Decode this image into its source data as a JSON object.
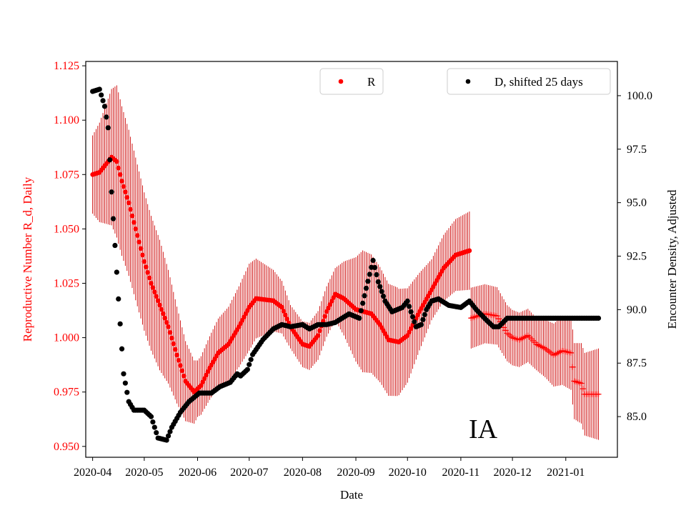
{
  "chart_data": {
    "type": "scatter",
    "xlabel": "Date",
    "ylabel_left": "Reproductive Number R_d, Daily",
    "ylabel_right": "Encounter Density, Adjusted",
    "annotation": "IA",
    "x_range": [
      "2020-03-28",
      "2021-01-31"
    ],
    "ylim_left": [
      0.945,
      1.127
    ],
    "ylim_right": [
      83.1,
      101.6
    ],
    "x_ticks": [
      "2020-04",
      "2020-05",
      "2020-06",
      "2020-07",
      "2020-08",
      "2020-09",
      "2020-10",
      "2020-11",
      "2020-12",
      "2021-01"
    ],
    "y_ticks_left": [
      "0.950",
      "0.975",
      "1.000",
      "1.025",
      "1.050",
      "1.075",
      "1.100",
      "1.125"
    ],
    "y_ticks_right": [
      "85.0",
      "87.5",
      "90.0",
      "92.5",
      "95.0",
      "97.5",
      "100.0"
    ],
    "legend_left": {
      "label": "R",
      "placement": "upper-center"
    },
    "legend_right": {
      "label": "D, shifted 25 days",
      "placement": "upper-right"
    },
    "colors": {
      "R": "#ff0000",
      "D": "#000000",
      "errorbar": "#cc0000",
      "left_axis_text": "#ff0000"
    },
    "grid": false,
    "series": [
      {
        "name": "R",
        "axis": "left",
        "marker": "dot until 2020-11-06, plus after",
        "knots": [
          [
            "2020-04-01",
            1.075
          ],
          [
            "2020-04-05",
            1.076
          ],
          [
            "2020-04-08",
            1.079
          ],
          [
            "2020-04-12",
            1.083
          ],
          [
            "2020-04-15",
            1.081
          ],
          [
            "2020-04-18",
            1.072
          ],
          [
            "2020-04-22",
            1.062
          ],
          [
            "2020-04-26",
            1.05
          ],
          [
            "2020-05-01",
            1.035
          ],
          [
            "2020-05-05",
            1.025
          ],
          [
            "2020-05-10",
            1.015
          ],
          [
            "2020-05-15",
            1.005
          ],
          [
            "2020-05-20",
            0.992
          ],
          [
            "2020-05-25",
            0.98
          ],
          [
            "2020-05-30",
            0.975
          ],
          [
            "2020-06-03",
            0.978
          ],
          [
            "2020-06-08",
            0.986
          ],
          [
            "2020-06-13",
            0.993
          ],
          [
            "2020-06-19",
            0.997
          ],
          [
            "2020-06-25",
            1.005
          ],
          [
            "2020-07-01",
            1.014
          ],
          [
            "2020-07-05",
            1.018
          ],
          [
            "2020-07-15",
            1.017
          ],
          [
            "2020-07-20",
            1.014
          ],
          [
            "2020-07-25",
            1.005
          ],
          [
            "2020-08-01",
            0.997
          ],
          [
            "2020-08-05",
            0.996
          ],
          [
            "2020-08-10",
            1.001
          ],
          [
            "2020-08-15",
            1.012
          ],
          [
            "2020-08-20",
            1.02
          ],
          [
            "2020-08-25",
            1.018
          ],
          [
            "2020-09-01",
            1.013
          ],
          [
            "2020-09-10",
            1.011
          ],
          [
            "2020-09-15",
            1.006
          ],
          [
            "2020-09-20",
            0.999
          ],
          [
            "2020-09-26",
            0.998
          ],
          [
            "2020-10-01",
            1.001
          ],
          [
            "2020-10-08",
            1.012
          ],
          [
            "2020-10-15",
            1.022
          ],
          [
            "2020-10-22",
            1.032
          ],
          [
            "2020-10-29",
            1.038
          ],
          [
            "2020-11-06",
            1.04
          ],
          [
            "2020-11-07",
            1.009
          ],
          [
            "2020-11-15",
            1.011
          ],
          [
            "2020-11-22",
            1.01
          ],
          [
            "2020-11-28",
            1.002
          ],
          [
            "2020-12-01",
            1.0
          ],
          [
            "2020-12-05",
            0.999
          ],
          [
            "2020-12-10",
            1.001
          ],
          [
            "2020-12-15",
            0.997
          ],
          [
            "2020-12-20",
            0.995
          ],
          [
            "2020-12-25",
            0.992
          ],
          [
            "2020-12-30",
            0.994
          ],
          [
            "2021-01-04",
            0.993
          ],
          [
            "2021-01-06",
            0.98
          ],
          [
            "2021-01-10",
            0.979
          ],
          [
            "2021-01-12",
            0.974
          ],
          [
            "2021-01-20",
            0.974
          ]
        ],
        "error_halfwidth": [
          [
            "2020-04-01",
            0.018
          ],
          [
            "2020-04-15",
            0.035
          ],
          [
            "2020-05-10",
            0.03
          ],
          [
            "2020-06-01",
            0.013
          ],
          [
            "2020-07-01",
            0.02
          ],
          [
            "2020-07-25",
            0.01
          ],
          [
            "2020-08-20",
            0.012
          ],
          [
            "2020-09-05",
            0.028
          ],
          [
            "2020-09-25",
            0.025
          ],
          [
            "2020-10-15",
            0.014
          ],
          [
            "2020-11-06",
            0.018
          ],
          [
            "2020-11-07",
            0.014
          ],
          [
            "2020-12-15",
            0.012
          ],
          [
            "2021-01-20",
            0.021
          ]
        ]
      },
      {
        "name": "D, shifted 25 days",
        "axis": "right",
        "knots": [
          [
            "2020-04-01",
            100.2
          ],
          [
            "2020-04-05",
            100.3
          ],
          [
            "2020-04-08",
            99.5
          ],
          [
            "2020-04-10",
            98.5
          ],
          [
            "2020-04-12",
            95.5
          ],
          [
            "2020-04-14",
            93.0
          ],
          [
            "2020-04-16",
            90.5
          ],
          [
            "2020-04-19",
            87.0
          ],
          [
            "2020-04-22",
            85.7
          ],
          [
            "2020-04-25",
            85.3
          ],
          [
            "2020-05-01",
            85.3
          ],
          [
            "2020-05-05",
            85.0
          ],
          [
            "2020-05-09",
            84.0
          ],
          [
            "2020-05-14",
            83.9
          ],
          [
            "2020-05-17",
            84.5
          ],
          [
            "2020-05-22",
            85.2
          ],
          [
            "2020-05-27",
            85.7
          ],
          [
            "2020-06-02",
            86.1
          ],
          [
            "2020-06-09",
            86.1
          ],
          [
            "2020-06-14",
            86.4
          ],
          [
            "2020-06-20",
            86.6
          ],
          [
            "2020-06-24",
            87.0
          ],
          [
            "2020-06-26",
            86.9
          ],
          [
            "2020-06-30",
            87.2
          ],
          [
            "2020-07-03",
            87.9
          ],
          [
            "2020-07-09",
            88.6
          ],
          [
            "2020-07-15",
            89.1
          ],
          [
            "2020-07-20",
            89.3
          ],
          [
            "2020-07-25",
            89.2
          ],
          [
            "2020-08-01",
            89.3
          ],
          [
            "2020-08-05",
            89.1
          ],
          [
            "2020-08-10",
            89.3
          ],
          [
            "2020-08-15",
            89.3
          ],
          [
            "2020-08-20",
            89.4
          ],
          [
            "2020-08-28",
            89.8
          ],
          [
            "2020-09-03",
            89.6
          ],
          [
            "2020-09-07",
            91.0
          ],
          [
            "2020-09-11",
            92.3
          ],
          [
            "2020-09-14",
            91.3
          ],
          [
            "2020-09-18",
            90.4
          ],
          [
            "2020-09-22",
            89.9
          ],
          [
            "2020-09-28",
            90.1
          ],
          [
            "2020-10-01",
            90.4
          ],
          [
            "2020-10-03",
            89.9
          ],
          [
            "2020-10-06",
            89.2
          ],
          [
            "2020-10-09",
            89.3
          ],
          [
            "2020-10-12",
            90.0
          ],
          [
            "2020-10-15",
            90.4
          ],
          [
            "2020-10-19",
            90.5
          ],
          [
            "2020-10-25",
            90.2
          ],
          [
            "2020-11-01",
            90.1
          ],
          [
            "2020-11-06",
            90.4
          ],
          [
            "2020-11-10",
            90.0
          ],
          [
            "2020-11-16",
            89.5
          ],
          [
            "2020-11-20",
            89.2
          ],
          [
            "2020-11-23",
            89.2
          ],
          [
            "2020-11-28",
            89.6
          ],
          [
            "2021-01-20",
            89.6
          ]
        ]
      }
    ]
  }
}
